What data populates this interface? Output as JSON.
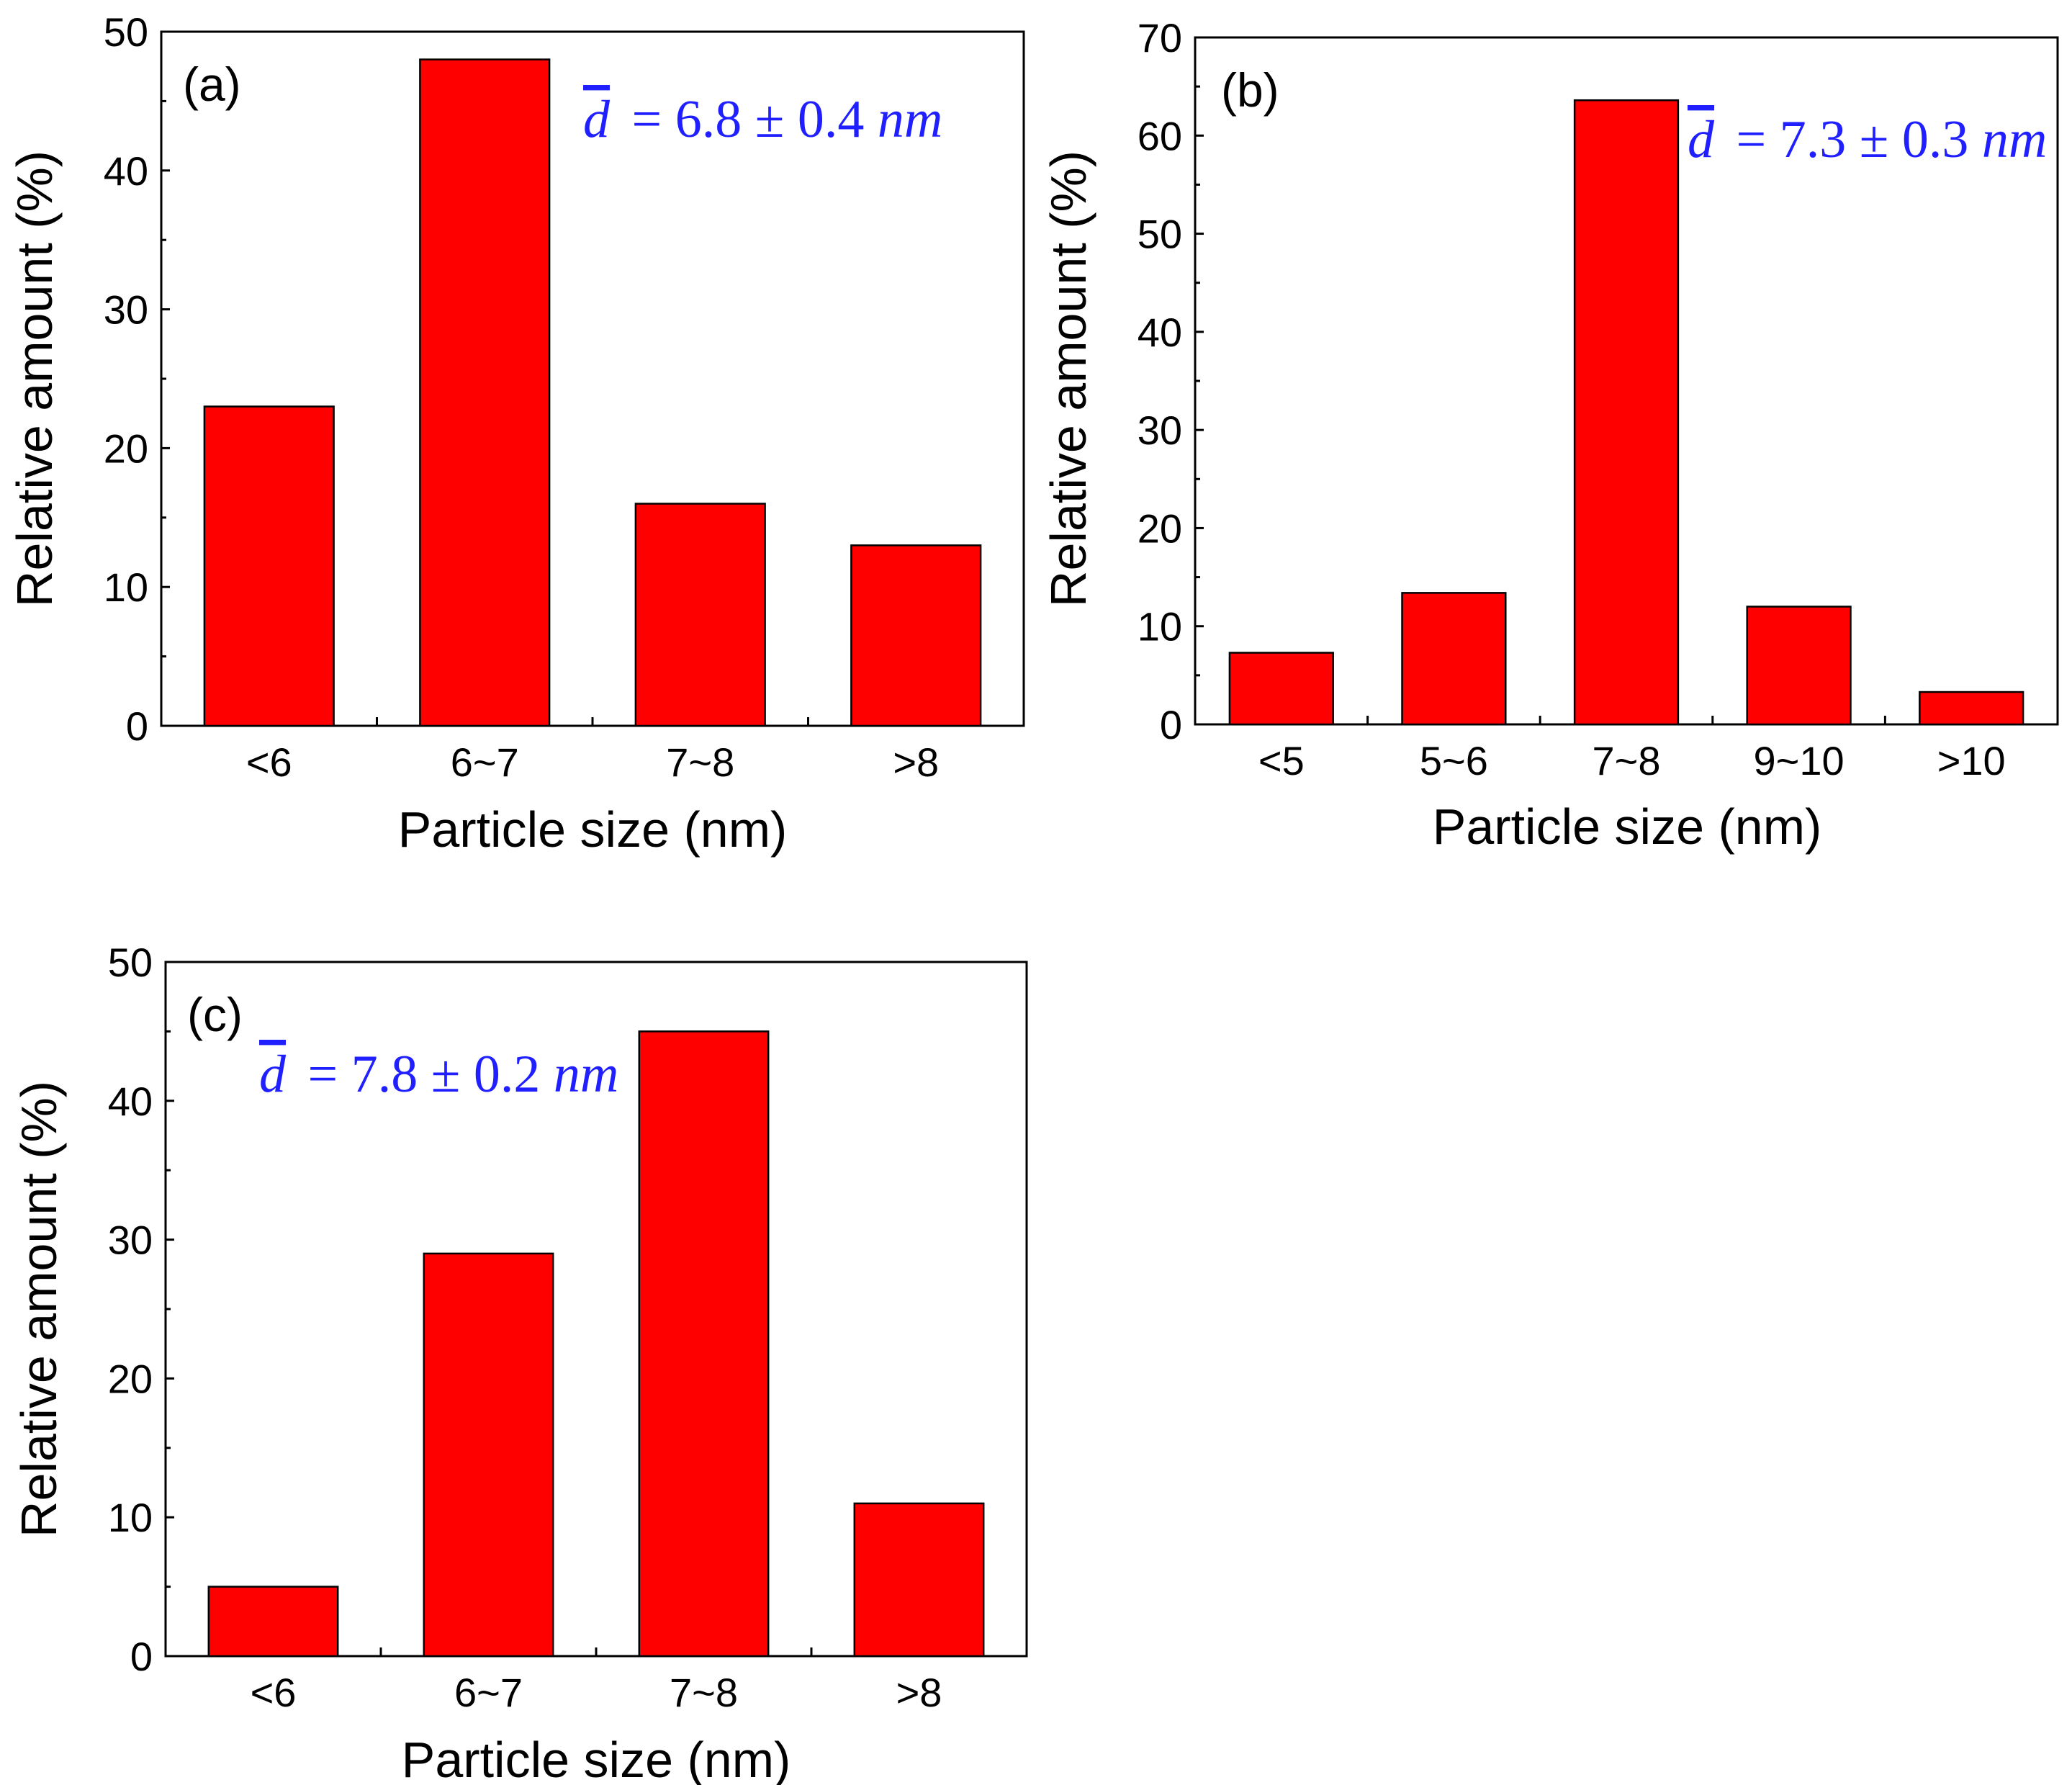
{
  "colors": {
    "bar": "#ff0000",
    "axis": "#000000",
    "annotation": "#1f1fff"
  },
  "chart_data": [
    {
      "type": "bar",
      "panel_label": "(a)",
      "title": "",
      "xlabel": "Particle size (nm)",
      "ylabel": "Relative amount (%)",
      "ylim": [
        0,
        50
      ],
      "yticks": [
        "0",
        "10",
        "20",
        "30",
        "40",
        "50"
      ],
      "categories": [
        "<6",
        "6~7",
        "7~8",
        ">8"
      ],
      "values": [
        23,
        48,
        16,
        13
      ],
      "annotation": {
        "symbol": "d",
        "text": "= 6.8 ± 0.4",
        "unit": "nm"
      }
    },
    {
      "type": "bar",
      "panel_label": "(b)",
      "title": "",
      "xlabel": "Particle size (nm)",
      "ylabel": "Relative amount (%)",
      "ylim": [
        0,
        70
      ],
      "yticks": [
        "0",
        "10",
        "20",
        "30",
        "40",
        "50",
        "60",
        "70"
      ],
      "categories": [
        "<5",
        "5~6",
        "7~8",
        "9~10",
        ">10"
      ],
      "values": [
        7.3,
        13.4,
        63.6,
        12,
        3.3
      ],
      "annotation": {
        "symbol": "d",
        "text": "= 7.3 ± 0.3",
        "unit": "nm"
      }
    },
    {
      "type": "bar",
      "panel_label": "(c)",
      "title": "",
      "xlabel": "Particle size (nm)",
      "ylabel": "Relative amount (%)",
      "ylim": [
        0,
        50
      ],
      "yticks": [
        "0",
        "10",
        "20",
        "30",
        "40",
        "50"
      ],
      "categories": [
        "<6",
        "6~7",
        "7~8",
        ">8"
      ],
      "values": [
        5,
        29,
        45,
        11
      ],
      "annotation": {
        "symbol": "d",
        "text": "= 7.8 ± 0.2",
        "unit": "nm"
      }
    }
  ]
}
